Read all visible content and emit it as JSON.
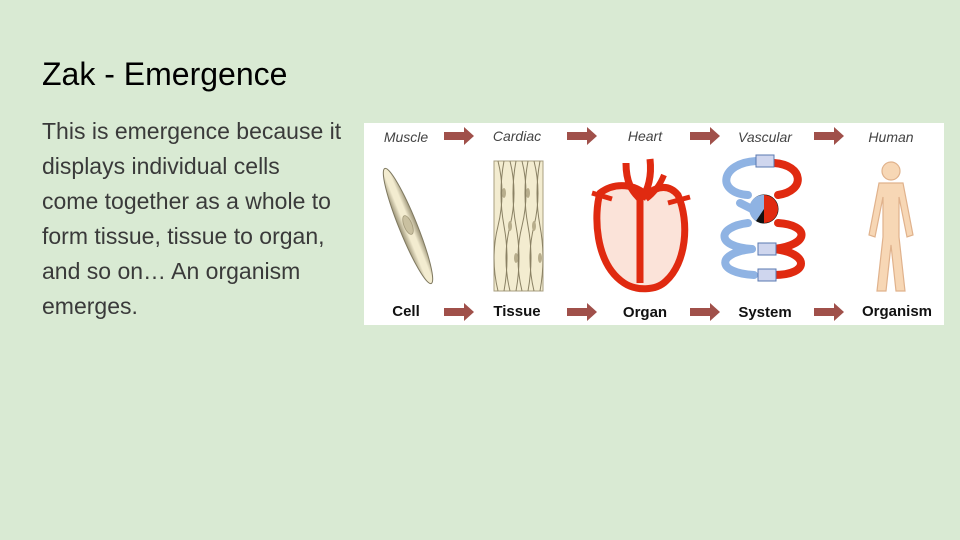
{
  "slide": {
    "title": "Zak - Emergence",
    "body": "This is emergence because it displays individual cells come together as a whole to form tissue, tissue to organ, and so on… An organism emerges."
  },
  "figure": {
    "colors": {
      "arrow": "#a0504a",
      "artery": "#e02a10",
      "vein": "#8fb3e3",
      "skin": "#f7d7b5",
      "cell": "#f3ecd0"
    },
    "stages": [
      {
        "top_label": "Muscle",
        "bottom_label": "Cell",
        "icon": "muscle-cell-icon"
      },
      {
        "top_label": "Cardiac",
        "bottom_label": "Tissue",
        "icon": "cardiac-tissue-icon"
      },
      {
        "top_label": "Heart",
        "bottom_label": "Organ",
        "icon": "heart-icon"
      },
      {
        "top_label": "Vascular",
        "bottom_label": "System",
        "icon": "vascular-system-icon"
      },
      {
        "top_label": "Human",
        "bottom_label": "Organism",
        "icon": "human-figure-icon"
      }
    ]
  }
}
